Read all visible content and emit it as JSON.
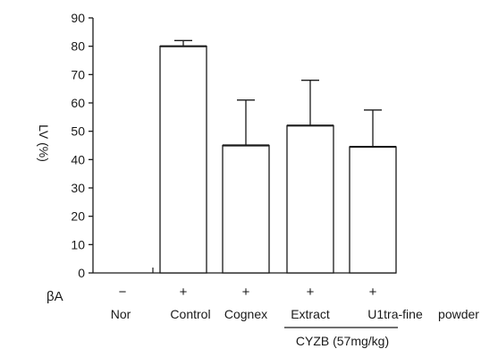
{
  "chart_data": {
    "type": "bar",
    "ylabel": "LV (%)",
    "ylim": [
      0,
      90
    ],
    "yticks": [
      "0",
      "10",
      "20",
      "30",
      "40",
      "50",
      "60",
      "70",
      "80",
      "90"
    ],
    "categories": [
      "Nor",
      "Control",
      "Cognex",
      "Extract",
      "U1tra-fine"
    ],
    "values": [
      0,
      80,
      45,
      52,
      44.5
    ],
    "error_upper": [
      0,
      82,
      61,
      68,
      57.5
    ],
    "beta_a_label": "βA",
    "beta_a_symbols": [
      "−",
      "+",
      "+",
      "+",
      "+"
    ],
    "trailing_label": "powder",
    "group_label": "CYZB (57mg/kg)",
    "colors": {
      "bar_fill": "#ffffff",
      "stroke": "#1a1a1a"
    }
  }
}
